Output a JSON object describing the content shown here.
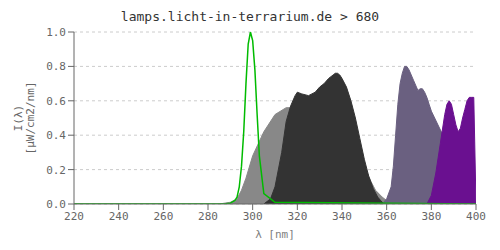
{
  "chart_data": {
    "type": "area",
    "title": "lamps.licht-in-terrarium.de > 680",
    "xlabel": "λ [nm]",
    "ylabel": "I(λ)\n[µW/cm2/nm]",
    "xlim": [
      220,
      400
    ],
    "ylim": [
      0.0,
      1.0
    ],
    "xticks": [
      220,
      240,
      260,
      280,
      300,
      320,
      340,
      360,
      380,
      400
    ],
    "yticks": [
      {
        "value": 0,
        "label": "0.0"
      },
      0.2,
      0.4,
      0.6,
      0.8,
      {
        "value": 1,
        "label": "1.0"
      }
    ],
    "grid": true,
    "series": [
      {
        "type": "area",
        "color": "#888888",
        "x": [
          220,
          285,
          290,
          293,
          295,
          297,
          300,
          305,
          310,
          315,
          318,
          320,
          323,
          325,
          328,
          330,
          335,
          338,
          340,
          342,
          345,
          348,
          350,
          353,
          355,
          358,
          360,
          400
        ],
        "values": [
          0.0,
          0.0,
          0.01,
          0.03,
          0.08,
          0.15,
          0.28,
          0.42,
          0.52,
          0.56,
          0.56,
          0.55,
          0.54,
          0.55,
          0.57,
          0.56,
          0.56,
          0.55,
          0.53,
          0.5,
          0.43,
          0.32,
          0.22,
          0.13,
          0.08,
          0.04,
          0.02,
          0.0
        ]
      },
      {
        "type": "area",
        "color": "#333333",
        "x": [
          305,
          308,
          310,
          313,
          315,
          317,
          318,
          319,
          320,
          322,
          325,
          328,
          330,
          332,
          334,
          336,
          337,
          338,
          339,
          340,
          342,
          344,
          346,
          348,
          350,
          352,
          354,
          356,
          358,
          360
        ],
        "values": [
          0.0,
          0.03,
          0.1,
          0.3,
          0.48,
          0.57,
          0.6,
          0.63,
          0.65,
          0.64,
          0.63,
          0.65,
          0.68,
          0.7,
          0.73,
          0.75,
          0.76,
          0.76,
          0.75,
          0.73,
          0.68,
          0.6,
          0.5,
          0.38,
          0.26,
          0.16,
          0.09,
          0.04,
          0.01,
          0.0
        ]
      },
      {
        "type": "area",
        "color": "#6a6080",
        "x": [
          358,
          360,
          362,
          363,
          364,
          365,
          366,
          367,
          368,
          369,
          370,
          372,
          374,
          375,
          376,
          377,
          378,
          379,
          380,
          400
        ],
        "values": [
          0.0,
          0.03,
          0.1,
          0.22,
          0.4,
          0.58,
          0.7,
          0.76,
          0.8,
          0.8,
          0.78,
          0.72,
          0.66,
          0.67,
          0.67,
          0.65,
          0.62,
          0.58,
          0.54,
          0.0
        ]
      },
      {
        "type": "area",
        "color": "#6a1090",
        "x": [
          378,
          380,
          382,
          384,
          386,
          387,
          388,
          389,
          390,
          391,
          392,
          393,
          394,
          395,
          396,
          397,
          398,
          399,
          400
        ],
        "values": [
          0.0,
          0.05,
          0.18,
          0.35,
          0.52,
          0.58,
          0.6,
          0.58,
          0.52,
          0.46,
          0.42,
          0.44,
          0.5,
          0.55,
          0.6,
          0.62,
          0.62,
          0.62,
          0.0
        ]
      },
      {
        "type": "line",
        "color": "#00bb00",
        "x": [
          220,
          280,
          285,
          288,
          290,
          292,
          293,
          294,
          295,
          296,
          297,
          298,
          299,
          300,
          301,
          302,
          303,
          305,
          310,
          400
        ],
        "values": [
          0.0,
          0.0,
          0.0,
          0.002,
          0.005,
          0.02,
          0.04,
          0.1,
          0.22,
          0.42,
          0.7,
          0.93,
          1.0,
          0.95,
          0.78,
          0.52,
          0.28,
          0.06,
          0.01,
          0.0
        ]
      }
    ]
  }
}
